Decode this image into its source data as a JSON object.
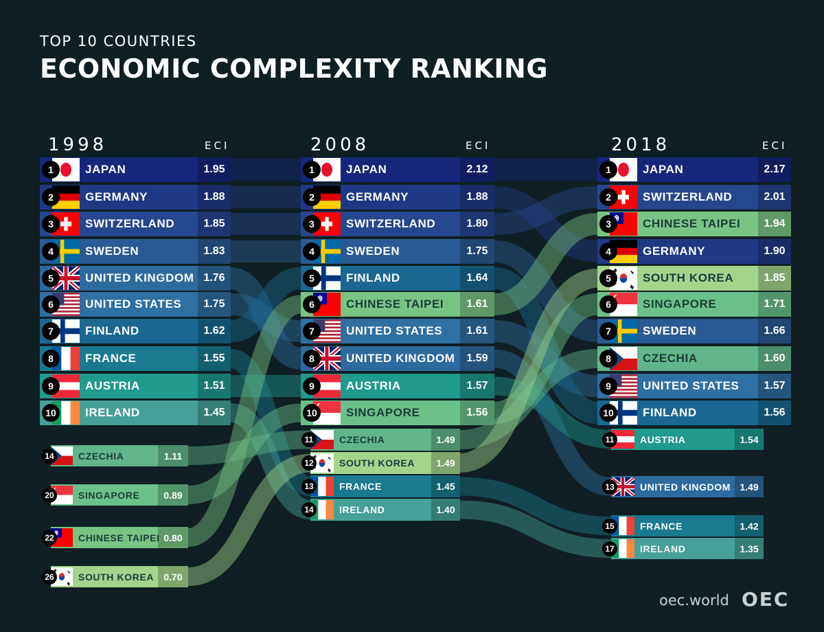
{
  "subtitle": "TOP 10 COUNTRIES",
  "title": "ECONOMIC COMPLEXITY RANKING",
  "eci_label": "ECI",
  "footer": {
    "url": "oec.world",
    "logo": "OEC"
  },
  "colors": {
    "JAPAN": "#15277a",
    "GERMANY": "#1e3a86",
    "SWITZERLAND": "#25478f",
    "SWEDEN": "#2a5a93",
    "UNITED KINGDOM": "#2d6a9d",
    "UNITED STATES": "#2f6fa2",
    "FINLAND": "#1a6891",
    "FRANCE": "#1a7a8f",
    "AUSTRIA": "#1f9a8d",
    "IRELAND": "#45a097",
    "SINGAPORE": "#6cc08a",
    "CHINESE TAIPEI": "#79c483",
    "CZECHIA": "#62b58a",
    "SOUTH KOREA": "#a2d58c"
  },
  "chart_data": [
    {
      "type": "table",
      "year": "1998",
      "rows": [
        {
          "rank": "1",
          "country": "JAPAN",
          "eci": "1.95"
        },
        {
          "rank": "2",
          "country": "GERMANY",
          "eci": "1.88"
        },
        {
          "rank": "3",
          "country": "SWITZERLAND",
          "eci": "1.85"
        },
        {
          "rank": "4",
          "country": "SWEDEN",
          "eci": "1.83"
        },
        {
          "rank": "5",
          "country": "UNITED KINGDOM",
          "eci": "1.76"
        },
        {
          "rank": "6",
          "country": "UNITED STATES",
          "eci": "1.75"
        },
        {
          "rank": "7",
          "country": "FINLAND",
          "eci": "1.62"
        },
        {
          "rank": "8",
          "country": "FRANCE",
          "eci": "1.55"
        },
        {
          "rank": "9",
          "country": "AUSTRIA",
          "eci": "1.51"
        },
        {
          "rank": "10",
          "country": "IRELAND",
          "eci": "1.45"
        },
        {
          "rank": "14",
          "country": "CZECHIA",
          "eci": "1.11"
        },
        {
          "rank": "20",
          "country": "SINGAPORE",
          "eci": "0.89"
        },
        {
          "rank": "22",
          "country": "CHINESE TAIPEI",
          "eci": "0.80"
        },
        {
          "rank": "26",
          "country": "SOUTH KOREA",
          "eci": "0.70"
        }
      ]
    },
    {
      "type": "table",
      "year": "2008",
      "rows": [
        {
          "rank": "1",
          "country": "JAPAN",
          "eci": "2.12"
        },
        {
          "rank": "2",
          "country": "GERMANY",
          "eci": "1.88"
        },
        {
          "rank": "3",
          "country": "SWITZERLAND",
          "eci": "1.80"
        },
        {
          "rank": "4",
          "country": "SWEDEN",
          "eci": "1.75"
        },
        {
          "rank": "5",
          "country": "FINLAND",
          "eci": "1.64"
        },
        {
          "rank": "6",
          "country": "CHINESE TAIPEI",
          "eci": "1.61"
        },
        {
          "rank": "7",
          "country": "UNITED STATES",
          "eci": "1.61"
        },
        {
          "rank": "8",
          "country": "UNITED KINGDOM",
          "eci": "1.59"
        },
        {
          "rank": "9",
          "country": "AUSTRIA",
          "eci": "1.57"
        },
        {
          "rank": "10",
          "country": "SINGAPORE",
          "eci": "1.56"
        },
        {
          "rank": "11",
          "country": "CZECHIA",
          "eci": "1.49"
        },
        {
          "rank": "12",
          "country": "SOUTH KOREA",
          "eci": "1.49"
        },
        {
          "rank": "13",
          "country": "FRANCE",
          "eci": "1.45"
        },
        {
          "rank": "14",
          "country": "IRELAND",
          "eci": "1.40"
        }
      ]
    },
    {
      "type": "table",
      "year": "2018",
      "rows": [
        {
          "rank": "1",
          "country": "JAPAN",
          "eci": "2.17"
        },
        {
          "rank": "2",
          "country": "SWITZERLAND",
          "eci": "2.01"
        },
        {
          "rank": "3",
          "country": "CHINESE TAIPEI",
          "eci": "1.94"
        },
        {
          "rank": "4",
          "country": "GERMANY",
          "eci": "1.90"
        },
        {
          "rank": "5",
          "country": "SOUTH KOREA",
          "eci": "1.85"
        },
        {
          "rank": "6",
          "country": "SINGAPORE",
          "eci": "1.71"
        },
        {
          "rank": "7",
          "country": "SWEDEN",
          "eci": "1.66"
        },
        {
          "rank": "8",
          "country": "CZECHIA",
          "eci": "1.60"
        },
        {
          "rank": "9",
          "country": "UNITED STATES",
          "eci": "1.57"
        },
        {
          "rank": "10",
          "country": "FINLAND",
          "eci": "1.56"
        },
        {
          "rank": "11",
          "country": "AUSTRIA",
          "eci": "1.54"
        },
        {
          "rank": "13",
          "country": "UNITED KINGDOM",
          "eci": "1.49"
        },
        {
          "rank": "15",
          "country": "FRANCE",
          "eci": "1.42"
        },
        {
          "rank": "17",
          "country": "IRELAND",
          "eci": "1.35"
        }
      ]
    }
  ]
}
